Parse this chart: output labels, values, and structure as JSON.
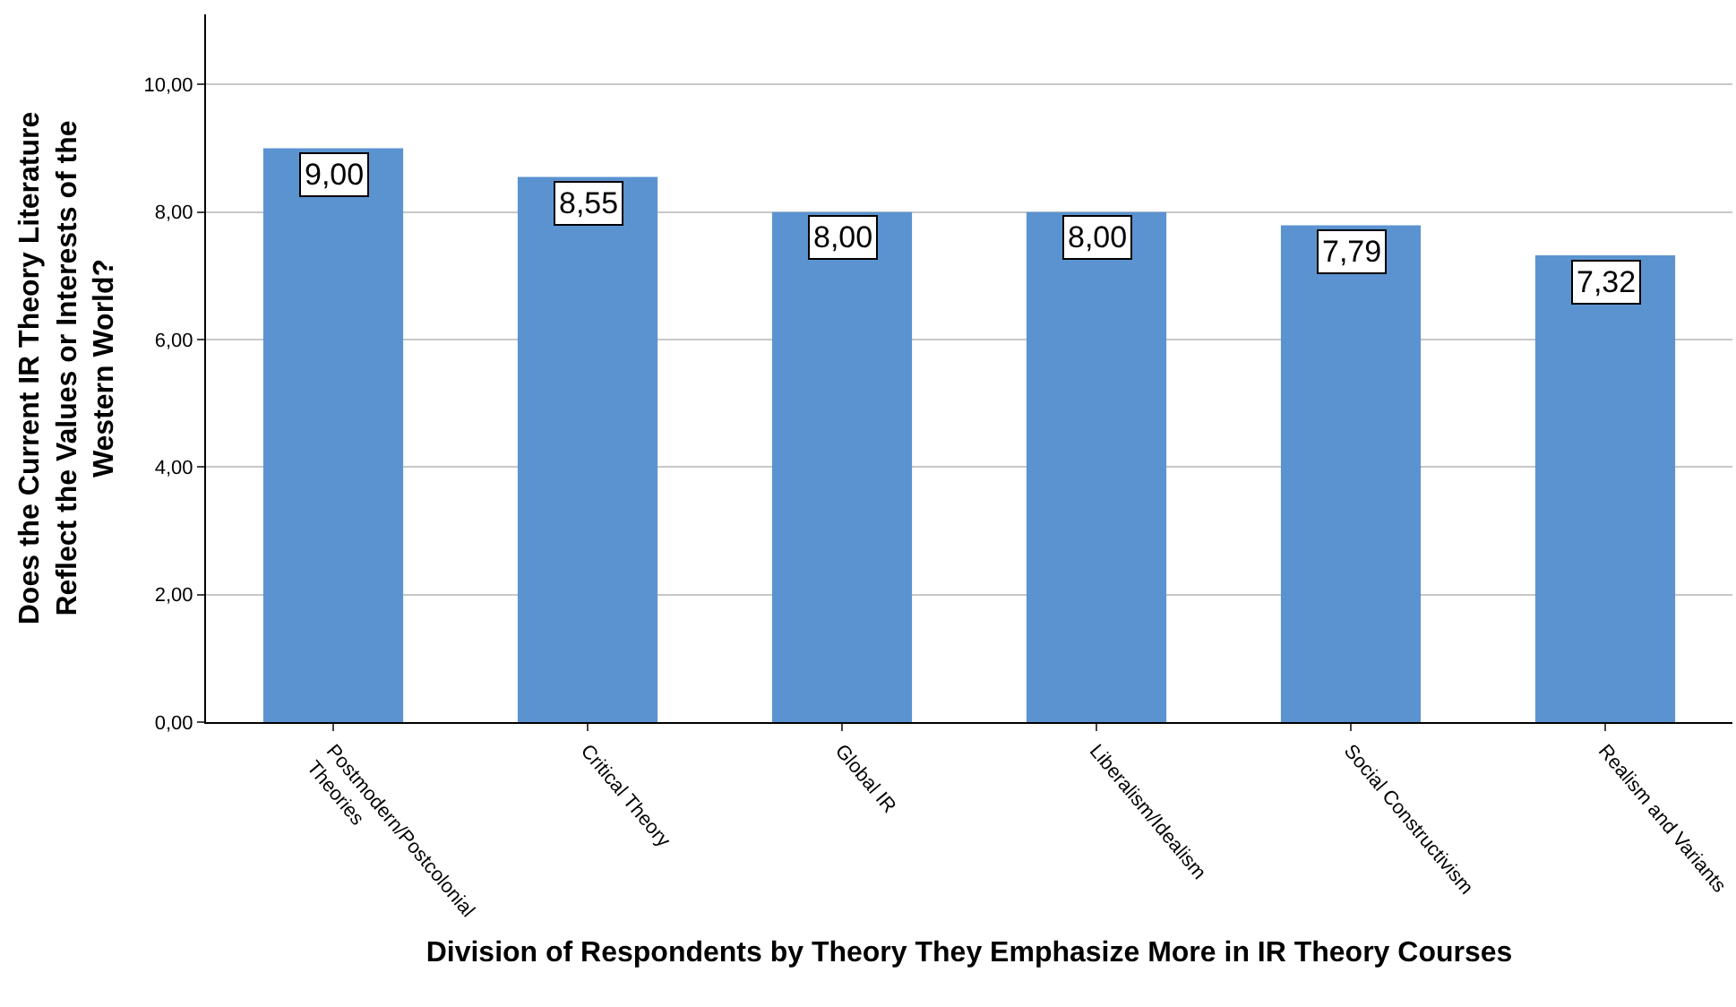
{
  "chart_data": {
    "type": "bar",
    "xlabel": "Division of Respondents by Theory They Emphasize More in IR Theory Courses",
    "ylabel": "Does the Current IR Theory Literature\nReflect the Values or Interests of the\nWestern World?",
    "categories": [
      "Postmodern/Postcolonial\nTheories",
      "Critical Theory",
      "Global IR",
      "Liberalism/Idealism",
      "Social Constructivism",
      "Realism and Variants"
    ],
    "values": [
      9.0,
      8.55,
      8.0,
      8.0,
      7.79,
      7.32
    ],
    "value_labels": [
      "9,00",
      "8,55",
      "8,00",
      "8,00",
      "7,79",
      "7,32"
    ],
    "color": "#5b93d0",
    "ylim": [
      0,
      11.1
    ],
    "yticks": [
      {
        "value": 0,
        "label": "0,00"
      },
      {
        "value": 2,
        "label": "2,00"
      },
      {
        "value": 4,
        "label": "4,00"
      },
      {
        "value": 6,
        "label": "6,00"
      },
      {
        "value": 8,
        "label": "8,00"
      },
      {
        "value": 10,
        "label": "10,00"
      }
    ],
    "grid": "y"
  }
}
